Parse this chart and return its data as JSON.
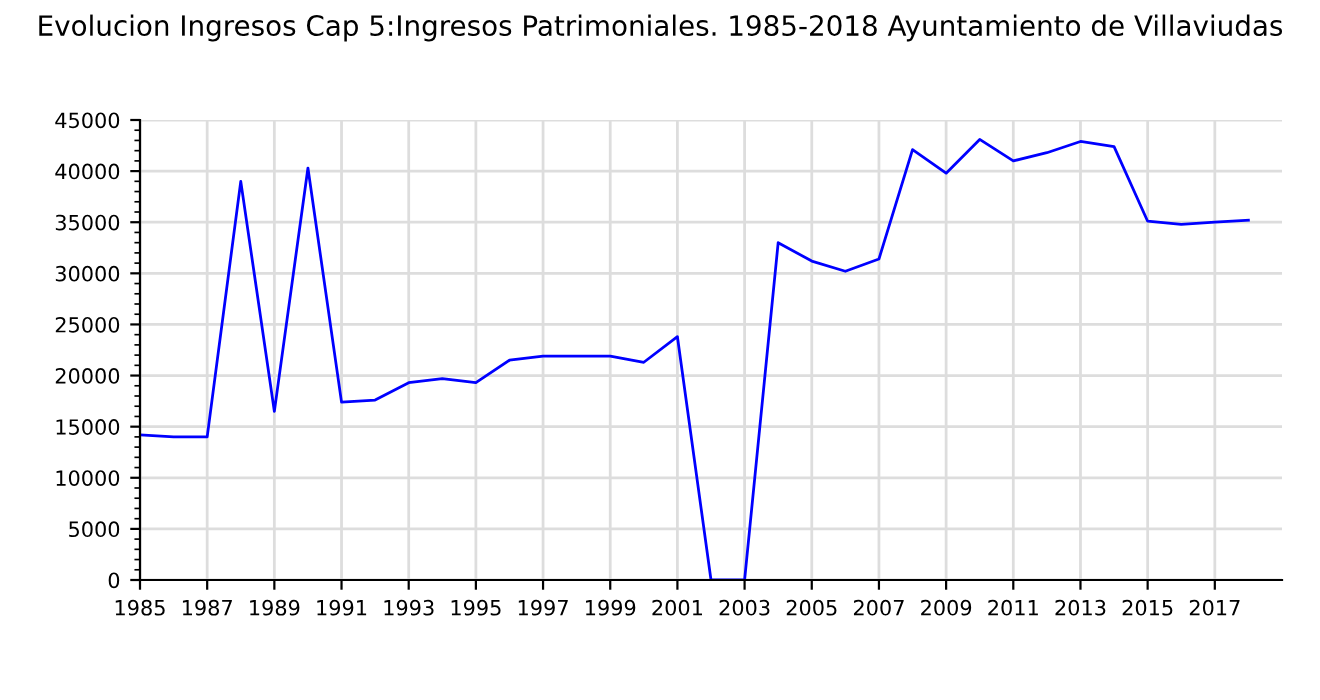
{
  "chart_data": {
    "type": "line",
    "title": "Evolucion Ingresos Cap 5:Ingresos Patrimoniales. 1985-2018 Ayuntamiento de Villaviudas",
    "x": [
      1985,
      1986,
      1987,
      1988,
      1989,
      1990,
      1991,
      1992,
      1993,
      1994,
      1995,
      1996,
      1997,
      1998,
      1999,
      2000,
      2001,
      2002,
      2003,
      2004,
      2005,
      2006,
      2007,
      2008,
      2009,
      2010,
      2011,
      2012,
      2013,
      2014,
      2015,
      2016,
      2017,
      2018
    ],
    "series": [
      {
        "color": "#0000ff",
        "values": [
          14200,
          14000,
          14000,
          39000,
          16500,
          40300,
          17400,
          17600,
          19300,
          19700,
          19300,
          21500,
          21900,
          21900,
          21900,
          21300,
          23800,
          0,
          0,
          33000,
          31200,
          30200,
          31400,
          42100,
          39800,
          43100,
          41000,
          41800,
          42900,
          42400,
          35100,
          34800,
          35000,
          35200
        ]
      }
    ],
    "xlim": [
      1985,
      2019
    ],
    "xticks": [
      1985,
      1987,
      1989,
      1991,
      1993,
      1995,
      1997,
      1999,
      2001,
      2003,
      2005,
      2007,
      2009,
      2011,
      2013,
      2015,
      2017
    ],
    "ylim": [
      0,
      45000
    ],
    "yticks": [
      0,
      5000,
      10000,
      15000,
      20000,
      25000,
      30000,
      35000,
      40000,
      45000
    ],
    "grid": true,
    "marker": "none",
    "line_style": "solid"
  }
}
